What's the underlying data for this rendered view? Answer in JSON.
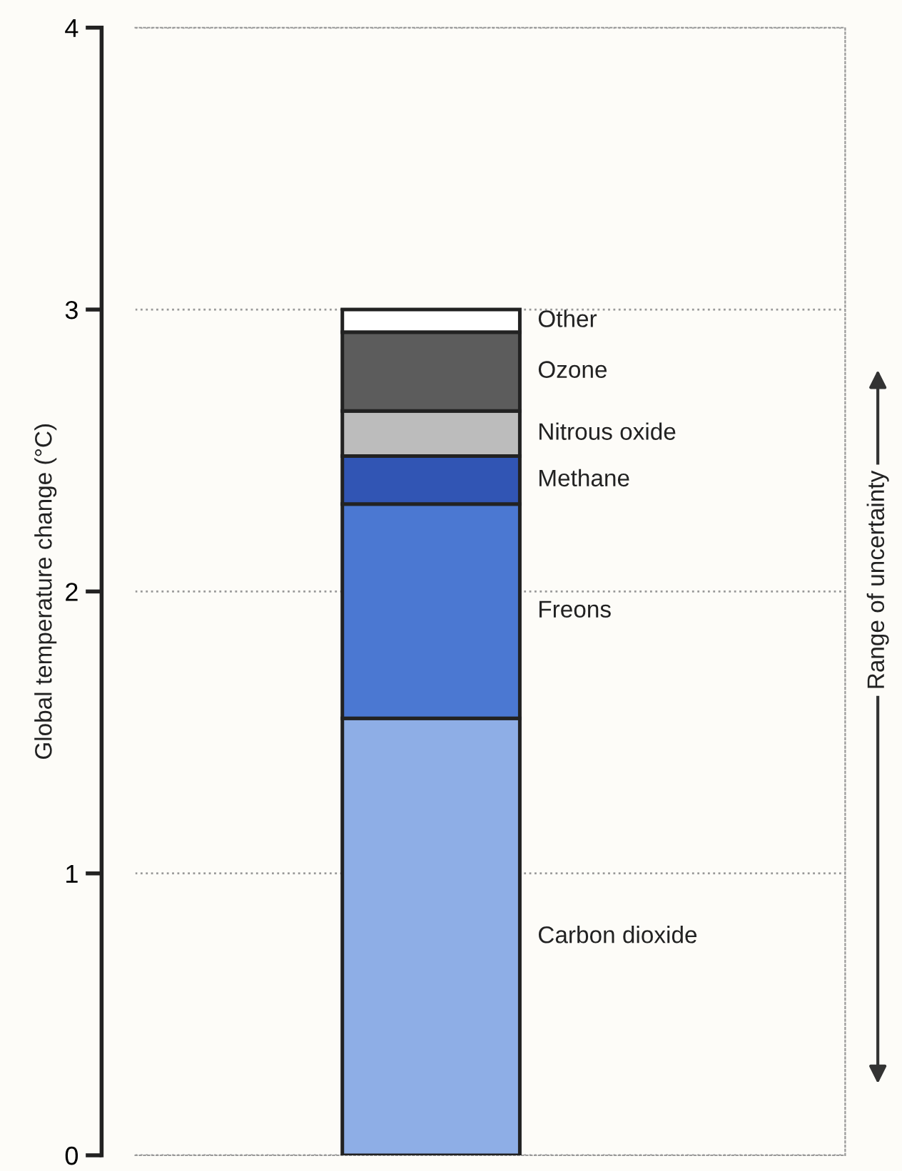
{
  "chart_data": {
    "type": "bar",
    "stacked": true,
    "ylabel": "Global temperature change (°C)",
    "categories": [
      null
    ],
    "series": [
      {
        "name": "Carbon dioxide",
        "color": "#8eaee6",
        "values": [
          1.55
        ]
      },
      {
        "name": "Freons",
        "color": "#4b78d2",
        "values": [
          0.76
        ]
      },
      {
        "name": "Methane",
        "color": "#3155b4",
        "values": [
          0.17
        ]
      },
      {
        "name": "Nitrous oxide",
        "color": "#bcbcbc",
        "values": [
          0.16
        ]
      },
      {
        "name": "Ozone",
        "color": "#5c5c5c",
        "values": [
          0.28
        ]
      },
      {
        "name": "Other",
        "color": "#ffffff",
        "values": [
          0.08
        ]
      }
    ],
    "ylim": [
      0,
      4
    ],
    "yticks": [
      0,
      1,
      2,
      3,
      4
    ],
    "grid": "y",
    "legend": false,
    "tick_labels": "y",
    "annotations": [
      "Range of uncertainty"
    ]
  }
}
